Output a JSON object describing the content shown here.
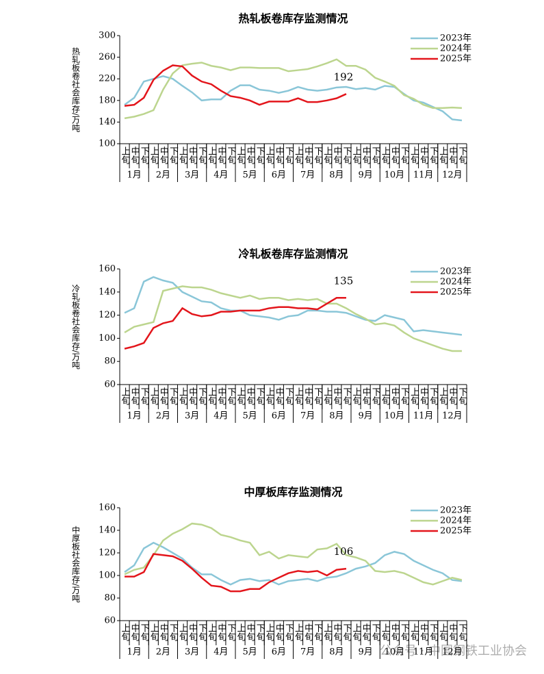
{
  "chart_data": [
    {
      "type": "line",
      "title": "热轧板卷库存监测情况",
      "y_label": "热轧板卷社会库存/万吨",
      "categories": [
        "上旬",
        "中旬",
        "下旬",
        "上旬",
        "中旬",
        "下旬",
        "上旬",
        "中旬",
        "下旬",
        "上旬",
        "中旬",
        "下旬",
        "上旬",
        "中旬",
        "下旬",
        "上旬",
        "中旬",
        "下旬",
        "上旬",
        "中旬",
        "下旬",
        "上旬",
        "中旬",
        "下旬",
        "上旬",
        "中旬",
        "下旬",
        "上旬",
        "中旬",
        "下旬",
        "上旬",
        "中旬",
        "下旬",
        "上旬",
        "中旬",
        "下旬"
      ],
      "groups": [
        "1月",
        "2月",
        "3月",
        "4月",
        "5月",
        "6月",
        "7月",
        "8月",
        "9月",
        "10月",
        "11月",
        "12月"
      ],
      "ylim": [
        100,
        300
      ],
      "yticks": [
        100,
        140,
        180,
        220,
        260,
        300
      ],
      "legend": "top-right",
      "annotation": "192",
      "series": [
        {
          "name": "2023年",
          "color": "#8ac6d8",
          "values": [
            172,
            185,
            215,
            220,
            225,
            220,
            207,
            195,
            180,
            182,
            182,
            198,
            208,
            208,
            200,
            198,
            194,
            198,
            205,
            200,
            198,
            200,
            204,
            205,
            201,
            203,
            200,
            207,
            205,
            192,
            180,
            176,
            168,
            160,
            145,
            143
          ]
        },
        {
          "name": "2024年",
          "color": "#bcd58e",
          "values": [
            147,
            150,
            155,
            162,
            200,
            230,
            245,
            248,
            250,
            244,
            241,
            236,
            241,
            241,
            240,
            240,
            240,
            234,
            236,
            238,
            243,
            249,
            256,
            244,
            244,
            237,
            222,
            215,
            207,
            190,
            183,
            172,
            166,
            166,
            167,
            166
          ]
        },
        {
          "name": "2025年",
          "color": "#e3151b",
          "values": [
            170,
            172,
            185,
            218,
            235,
            245,
            243,
            226,
            215,
            210,
            198,
            188,
            185,
            180,
            172,
            178,
            178,
            178,
            184,
            177,
            177,
            180,
            184,
            192,
            null,
            null,
            null,
            null,
            null,
            null,
            null,
            null,
            null,
            null,
            null,
            null
          ]
        }
      ]
    },
    {
      "type": "line",
      "title": "冷轧板卷库存监测情况",
      "y_label": "冷轧板卷社会库存/万吨",
      "categories": [
        "上旬",
        "中旬",
        "下旬",
        "上旬",
        "中旬",
        "下旬",
        "上旬",
        "中旬",
        "下旬",
        "上旬",
        "中旬",
        "下旬",
        "上旬",
        "中旬",
        "下旬",
        "上旬",
        "中旬",
        "下旬",
        "上旬",
        "中旬",
        "下旬",
        "上旬",
        "中旬",
        "下旬",
        "上旬",
        "中旬",
        "下旬",
        "上旬",
        "中旬",
        "下旬",
        "上旬",
        "中旬",
        "下旬",
        "上旬",
        "中旬",
        "下旬"
      ],
      "groups": [
        "1月",
        "2月",
        "3月",
        "4月",
        "5月",
        "6月",
        "7月",
        "8月",
        "9月",
        "10月",
        "11月",
        "12月"
      ],
      "ylim": [
        60,
        160
      ],
      "yticks": [
        60,
        80,
        100,
        120,
        140,
        160
      ],
      "legend": "top-right",
      "annotation": "135",
      "series": [
        {
          "name": "2023年",
          "color": "#8ac6d8",
          "values": [
            122,
            126,
            149,
            153,
            150,
            148,
            140,
            136,
            132,
            131,
            126,
            124,
            124,
            120,
            119,
            118,
            116,
            119,
            120,
            124,
            124,
            123,
            123,
            122,
            119,
            116,
            115,
            120,
            118,
            116,
            106,
            107,
            106,
            105,
            104,
            103
          ]
        },
        {
          "name": "2024年",
          "color": "#bcd58e",
          "values": [
            105,
            110,
            112,
            114,
            141,
            143,
            145,
            144,
            144,
            142,
            139,
            137,
            135,
            137,
            134,
            135,
            135,
            133,
            134,
            133,
            134,
            130,
            130,
            126,
            121,
            117,
            112,
            113,
            111,
            105,
            100,
            97,
            94,
            91,
            89,
            89
          ]
        },
        {
          "name": "2025年",
          "color": "#e3151b",
          "values": [
            91,
            93,
            96,
            109,
            113,
            115,
            126,
            121,
            119,
            120,
            123,
            123,
            124,
            124,
            124,
            126,
            127,
            127,
            126,
            126,
            125,
            130,
            135,
            135,
            null,
            null,
            null,
            null,
            null,
            null,
            null,
            null,
            null,
            null,
            null,
            null
          ]
        }
      ]
    },
    {
      "type": "line",
      "title": "中厚板库存监测情况",
      "y_label": "中厚板社会库存/万吨",
      "categories": [
        "上旬",
        "中旬",
        "下旬",
        "上旬",
        "中旬",
        "下旬",
        "上旬",
        "中旬",
        "下旬",
        "上旬",
        "中旬",
        "下旬",
        "上旬",
        "中旬",
        "下旬",
        "上旬",
        "中旬",
        "下旬",
        "上旬",
        "中旬",
        "下旬",
        "上旬",
        "中旬",
        "下旬",
        "上旬",
        "中旬",
        "下旬",
        "上旬",
        "中旬",
        "下旬",
        "上旬",
        "中旬",
        "下旬",
        "上旬",
        "中旬",
        "下旬"
      ],
      "groups": [
        "1月",
        "2月",
        "3月",
        "4月",
        "5月",
        "6月",
        "7月",
        "8月",
        "9月",
        "10月",
        "11月",
        "12月"
      ],
      "ylim": [
        60,
        160
      ],
      "yticks": [
        60,
        80,
        100,
        120,
        140,
        160
      ],
      "legend": "top-right",
      "annotation": "106",
      "series": [
        {
          "name": "2023年",
          "color": "#8ac6d8",
          "values": [
            103,
            109,
            124,
            129,
            125,
            120,
            115,
            107,
            101,
            101,
            96,
            92,
            96,
            97,
            95,
            96,
            92,
            95,
            96,
            97,
            95,
            98,
            99,
            102,
            106,
            108,
            111,
            118,
            121,
            119,
            113,
            109,
            105,
            102,
            96,
            95
          ]
        },
        {
          "name": "2024年",
          "color": "#bcd58e",
          "values": [
            101,
            105,
            107,
            118,
            131,
            137,
            141,
            146,
            145,
            142,
            136,
            134,
            131,
            129,
            118,
            121,
            115,
            118,
            117,
            116,
            123,
            124,
            128,
            118,
            116,
            113,
            104,
            103,
            104,
            102,
            98,
            94,
            92,
            95,
            98,
            96
          ]
        },
        {
          "name": "2025年",
          "color": "#e3151b",
          "values": [
            99,
            99,
            103,
            119,
            118,
            117,
            113,
            106,
            98,
            91,
            90,
            86,
            86,
            88,
            88,
            94,
            98,
            102,
            104,
            103,
            104,
            100,
            105,
            106,
            null,
            null,
            null,
            null,
            null,
            null,
            null,
            null,
            null,
            null,
            null,
            null
          ]
        }
      ]
    }
  ],
  "watermark": "公众号 · 中国钢铁工业协会"
}
